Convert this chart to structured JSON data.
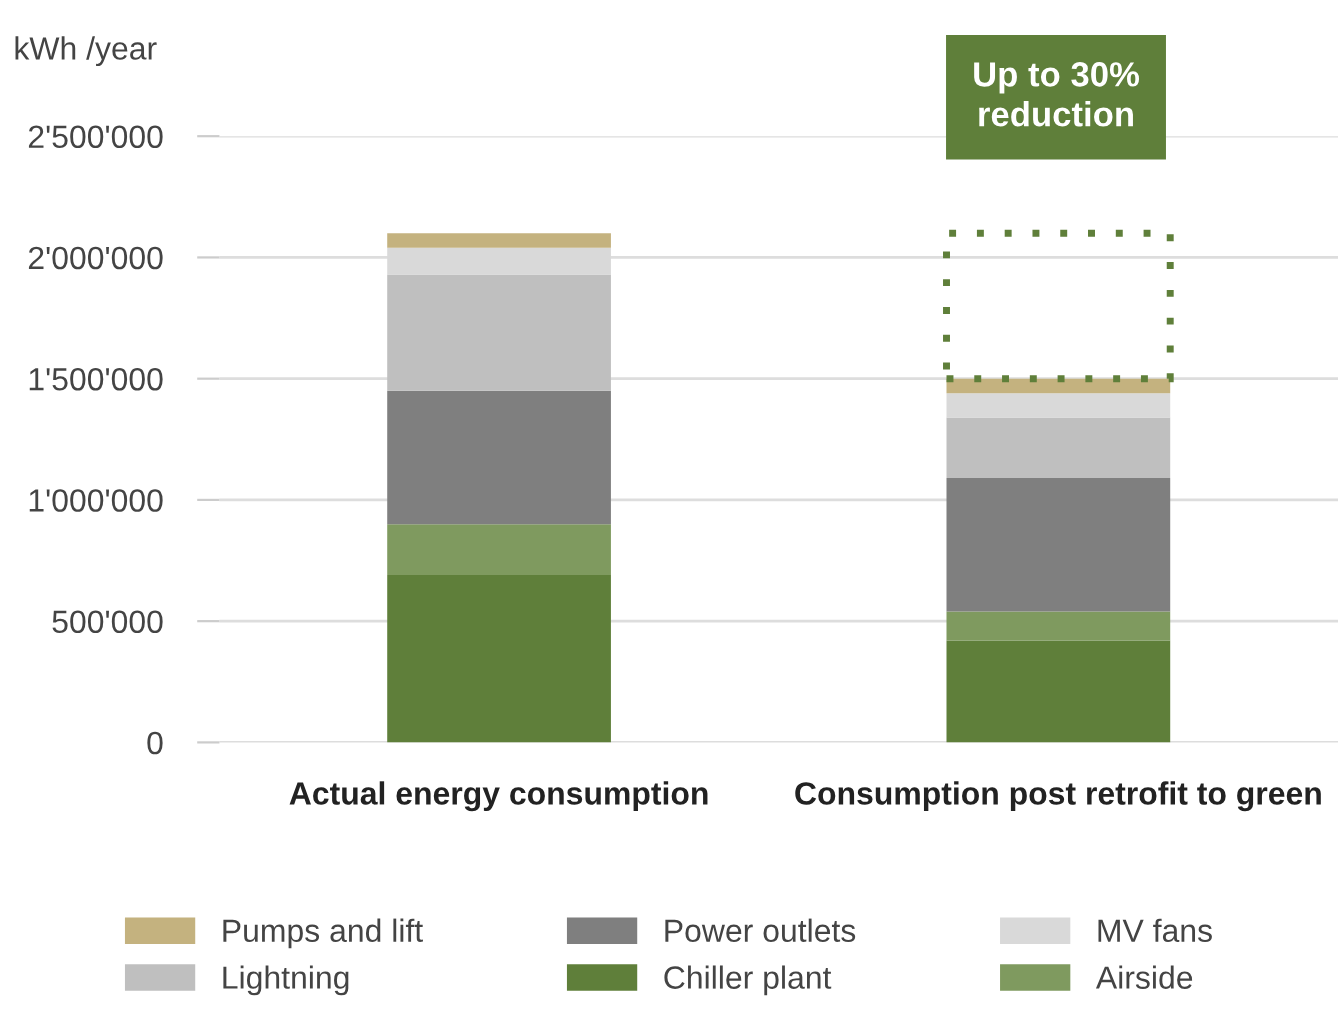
{
  "chart_data": {
    "type": "bar",
    "stacked": true,
    "ylabel": "kWh /year",
    "categories": [
      "Actual energy consumption",
      "Consumption post retrofit to green"
    ],
    "series": [
      {
        "name": "Chiller plant",
        "color": "#5f7f3a",
        "values": [
          690000,
          420000
        ]
      },
      {
        "name": "Airside",
        "color": "#7f9a5f",
        "values": [
          210000,
          120000
        ]
      },
      {
        "name": "Power outlets",
        "color": "#7f7f7f",
        "values": [
          550000,
          550000
        ]
      },
      {
        "name": "Lightning",
        "color": "#bfbfbf",
        "values": [
          480000,
          250000
        ]
      },
      {
        "name": "MV fans",
        "color": "#d9d9d9",
        "values": [
          110000,
          100000
        ]
      },
      {
        "name": "Pumps and lift",
        "color": "#c4b27f",
        "values": [
          60000,
          60000
        ]
      }
    ],
    "ylim": [
      0,
      2500000
    ],
    "yticks": [
      {
        "value": 0,
        "label": "0"
      },
      {
        "value": 500000,
        "label": "500'000"
      },
      {
        "value": 1000000,
        "label": "1'000'000"
      },
      {
        "value": 1500000,
        "label": "1'500'000"
      },
      {
        "value": 2000000,
        "label": "2'000'000"
      },
      {
        "value": 2500000,
        "label": "2'500'000"
      }
    ],
    "grid": "y",
    "legend": "bottom",
    "annotations": [
      "Up to 30% reduction"
    ]
  }
}
